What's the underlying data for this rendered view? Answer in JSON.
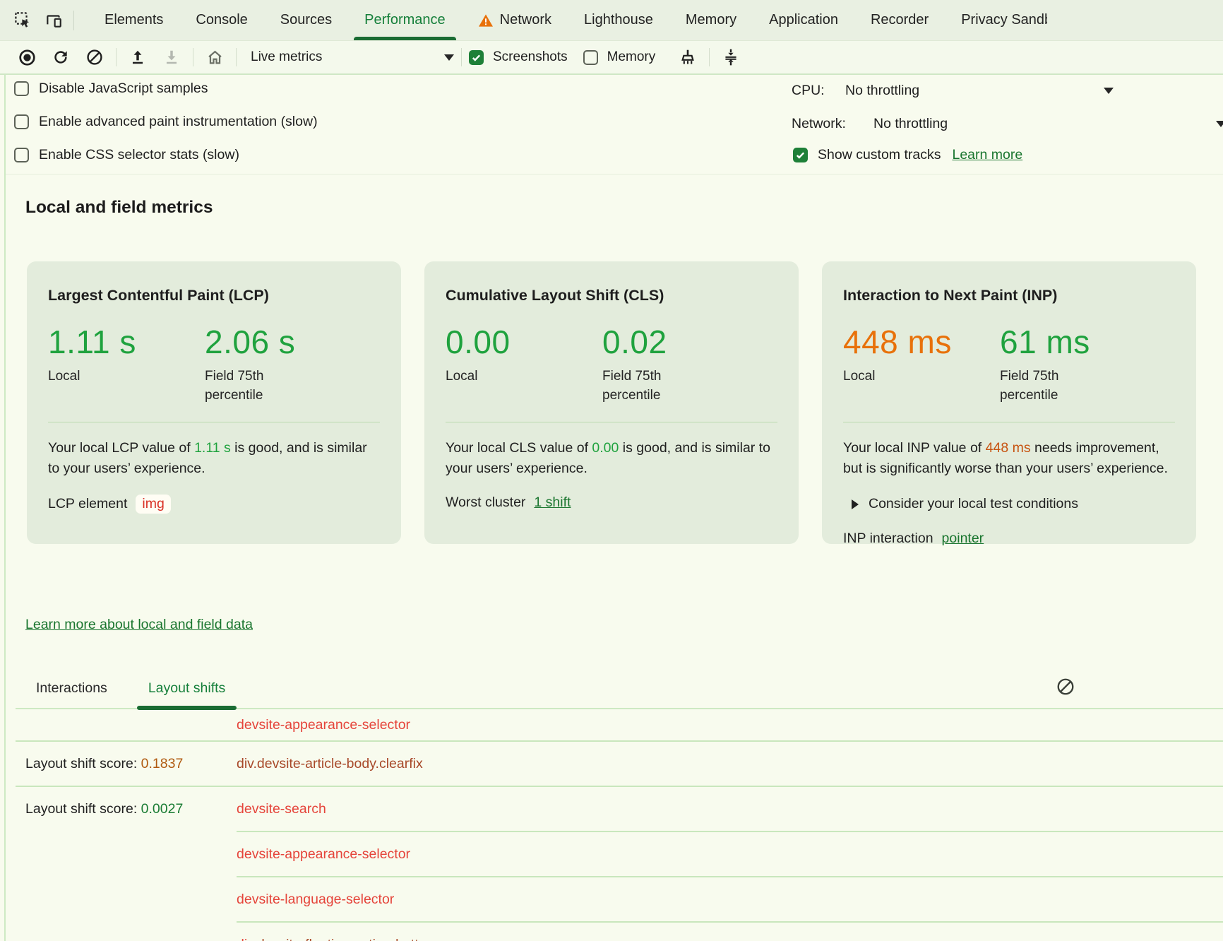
{
  "palette": {
    "tabbar_bg": "#e9f0e2",
    "toolbar_bg": "#f4f9ec",
    "page_bg": "#f8fbee",
    "card_bg": "#e3ecdc",
    "accent_green": "#1a6c33",
    "tab_green": "#157f3a",
    "link_green": "#19752e",
    "metric_good_green": "#1fa23e",
    "metric_orange": "#e8710a",
    "node_red": "#e5443a",
    "node_dark_red": "#a8492a"
  },
  "tabbar": {
    "items": [
      "Elements",
      "Console",
      "Sources",
      "Performance",
      "Network",
      "Lighthouse",
      "Memory",
      "Application",
      "Recorder",
      "Privacy Sandbox"
    ],
    "active": "Performance"
  },
  "toolbar": {
    "live_metrics_label": "Live metrics",
    "screenshots_label": "Screenshots",
    "memory_label": "Memory"
  },
  "settings": {
    "checkboxes": [
      "Disable JavaScript samples",
      "Enable advanced paint instrumentation (slow)",
      "Enable CSS selector stats (slow)"
    ],
    "cpu_label": "CPU:",
    "cpu_value": "No throttling",
    "network_label": "Network:",
    "network_value": "No throttling",
    "show_custom_tracks_label": "Show custom tracks",
    "learn_more_label": "Learn more"
  },
  "metrics": {
    "heading": "Local and field metrics",
    "cards": [
      {
        "title": "Largest Contentful Paint (LCP)",
        "local_value": "1.11 s",
        "local_label": "Local",
        "field_value": "2.06 s",
        "field_label": "Field 75th percentile",
        "desc_before": "Your local LCP value of ",
        "desc_value": "1.11 s",
        "desc_after": " is good, and is similar to your users’ experience.",
        "foot_label": "LCP element",
        "chip": "img"
      },
      {
        "title": "Cumulative Layout Shift (CLS)",
        "local_value": "0.00",
        "local_label": "Local",
        "field_value": "0.02",
        "field_label": "Field 75th percentile",
        "desc_before": "Your local CLS value of ",
        "desc_value": "0.00",
        "desc_after": " is good, and is similar to your users’ experience.",
        "foot_label": "Worst cluster",
        "foot_link": "1 shift"
      },
      {
        "title": "Interaction to Next Paint (INP)",
        "local_value": "448 ms",
        "local_label": "Local",
        "field_value": "61 ms",
        "field_label": "Field 75th percentile",
        "desc_before": "Your local INP value of ",
        "desc_value": "448 ms",
        "desc_after": " needs improvement, but is significantly worse than your users’ experience.",
        "disclosure": "Consider your local test conditions",
        "foot_label": "INP interaction",
        "foot_link": "pointer"
      }
    ],
    "learn_more_link": "Learn more about local and field data"
  },
  "logs": {
    "tabs": [
      "Interactions",
      "Layout shifts"
    ],
    "active_tab": "Layout shifts",
    "score_prefix": "Layout shift score: ",
    "rows": [
      {
        "score_label": "",
        "score_value": "",
        "score_variant": "",
        "parts": [
          {
            "t": "devsite-appearance-selector",
            "v": "red"
          }
        ],
        "sep": "full"
      },
      {
        "score_label": "Layout shift score: ",
        "score_value": "0.1837",
        "score_variant": "orange",
        "parts": [
          {
            "t": "div.devsite-article-body.clearfix",
            "v": "dark"
          }
        ],
        "sep": "full"
      },
      {
        "score_label": "Layout shift score: ",
        "score_value": "0.0027",
        "score_variant": "green",
        "parts": [
          {
            "t": "devsite-search",
            "v": "red"
          }
        ],
        "sep": "indent"
      },
      {
        "score_label": "",
        "score_value": "",
        "score_variant": "",
        "parts": [
          {
            "t": "devsite-appearance-selector",
            "v": "red"
          }
        ],
        "sep": "indent"
      },
      {
        "score_label": "",
        "score_value": "",
        "score_variant": "",
        "parts": [
          {
            "t": "devsite-language-selector",
            "v": "red"
          }
        ],
        "sep": "indent"
      },
      {
        "score_label": "",
        "score_value": "",
        "score_variant": "",
        "parts": [
          {
            "t": "div",
            "v": "red"
          },
          {
            "t": ".devsite-floating-action-buttons",
            "v": "dark"
          }
        ],
        "sep": "none"
      }
    ]
  }
}
